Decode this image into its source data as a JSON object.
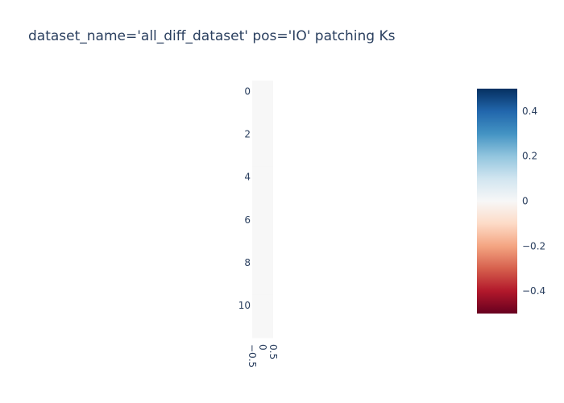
{
  "chart_data": {
    "type": "heatmap",
    "title": "dataset_name='all_diff_dataset' pos='IO' patching Ks",
    "xlabel": "",
    "ylabel": "",
    "x_range": [
      -0.5,
      0.5
    ],
    "y_range": [
      -0.5,
      11.5
    ],
    "y_reversed": true,
    "x_ticks": [
      -0.5,
      0,
      0.5
    ],
    "x_tick_labels": [
      "−0.5",
      "0",
      "0.5"
    ],
    "y_ticks": [
      0,
      2,
      4,
      6,
      8,
      10
    ],
    "y_tick_labels": [
      "0",
      "2",
      "4",
      "6",
      "8",
      "10"
    ],
    "x": [
      0
    ],
    "y": [
      0,
      1,
      2,
      3,
      4,
      5,
      6,
      7,
      8,
      9,
      10,
      11
    ],
    "z": [
      [
        0
      ],
      [
        0
      ],
      [
        0
      ],
      [
        0
      ],
      [
        0
      ],
      [
        0
      ],
      [
        0
      ],
      [
        0
      ],
      [
        0
      ],
      [
        0
      ],
      [
        0
      ],
      [
        0
      ]
    ],
    "colorscale": "RdBu",
    "zmin": -0.5,
    "zmax": 0.5,
    "colorbar_ticks": [
      0.4,
      0.2,
      0,
      -0.2,
      -0.4
    ],
    "colorbar_tick_labels": [
      "0.4",
      "0.2",
      "0",
      "−0.2",
      "−0.4"
    ],
    "colors": {
      "text": "#2a3f5f",
      "scale": [
        "#053061",
        "#2166ac",
        "#4393c3",
        "#92c5de",
        "#d1e5f0",
        "#f7f7f7",
        "#fddbc7",
        "#f4a582",
        "#d6604d",
        "#b2182b",
        "#67001f"
      ]
    }
  }
}
